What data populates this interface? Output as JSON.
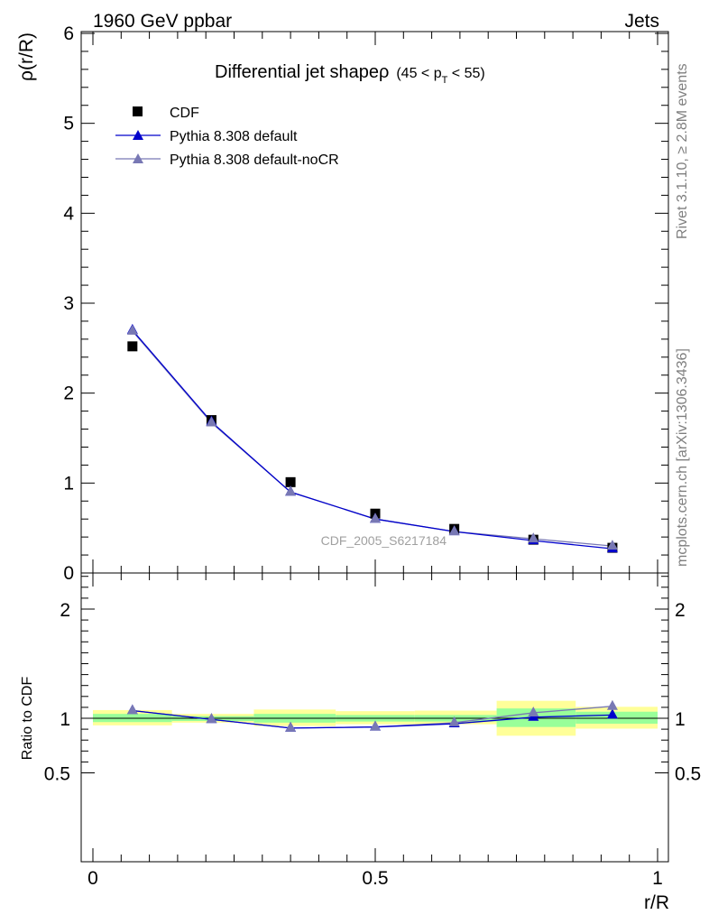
{
  "header": {
    "left": "1960 GeV ppbar",
    "right": "Jets"
  },
  "side_labels": {
    "rivet": "Rivet 3.1.10, ≥ 2.8M events",
    "mcplots": "mcplots.cern.ch [arXiv:1306.3436]"
  },
  "chart_data": [
    {
      "type": "line",
      "title_main": "Differential jet shapeρ",
      "title_range_pre": "(45 < p",
      "title_range_sub": "T",
      "title_range_post": " < 55)",
      "ylabel": "ρ(r/R)",
      "xlabel": "r/R",
      "ylim": [
        0,
        6
      ],
      "xlim": [
        -0.02,
        1.02
      ],
      "yticks": [
        0,
        1,
        2,
        3,
        4,
        5,
        6
      ],
      "ytick_labels": [
        "0",
        "1",
        "2",
        "3",
        "4",
        "5",
        "6"
      ],
      "watermark": "CDF_2005_S6217184",
      "legend_position": "top-left",
      "series": [
        {
          "name": "CDF",
          "marker": "square",
          "color": "#000000",
          "x": [
            0.07,
            0.21,
            0.35,
            0.5,
            0.64,
            0.78,
            0.92
          ],
          "y": [
            2.52,
            1.7,
            1.01,
            0.66,
            0.49,
            0.37,
            0.28
          ]
        },
        {
          "name": "Pythia 8.308 default",
          "marker": "triangle",
          "color": "#0000cc",
          "x": [
            0.07,
            0.21,
            0.35,
            0.5,
            0.64,
            0.78,
            0.92
          ],
          "y": [
            2.7,
            1.68,
            0.9,
            0.6,
            0.46,
            0.36,
            0.27
          ]
        },
        {
          "name": "Pythia 8.308 default-noCR",
          "marker": "triangle",
          "color": "#7878b4",
          "x": [
            0.07,
            0.21,
            0.35,
            0.5,
            0.64,
            0.78,
            0.92
          ],
          "y": [
            2.69,
            1.67,
            0.9,
            0.6,
            0.46,
            0.38,
            0.3
          ]
        }
      ]
    },
    {
      "type": "line",
      "ylabel": "Ratio to CDF",
      "xlabel": "r/R",
      "ylim": [
        0.37,
        2.33
      ],
      "xlim": [
        -0.02,
        1.02
      ],
      "yticks": [
        0.5,
        1,
        2
      ],
      "ytick_labels": [
        "0.5",
        "1",
        "2"
      ],
      "xticks": [
        0,
        0.5,
        1
      ],
      "xtick_labels": [
        "0",
        "0.5",
        "1"
      ],
      "uncertainty_bands": {
        "stat_color": "#99ff99",
        "total_color": "#ffff99",
        "bins": [
          {
            "x0": 0.0,
            "x1": 0.14,
            "green": [
              0.965,
              1.04
            ],
            "yellow": [
              0.935,
              1.075
            ]
          },
          {
            "x0": 0.14,
            "x1": 0.285,
            "green": [
              0.975,
              1.02
            ],
            "yellow": [
              0.96,
              1.04
            ]
          },
          {
            "x0": 0.285,
            "x1": 0.43,
            "green": [
              0.96,
              1.04
            ],
            "yellow": [
              0.93,
              1.08
            ]
          },
          {
            "x0": 0.43,
            "x1": 0.57,
            "green": [
              0.97,
              1.03
            ],
            "yellow": [
              0.945,
              1.065
            ]
          },
          {
            "x0": 0.57,
            "x1": 0.715,
            "green": [
              0.97,
              1.03
            ],
            "yellow": [
              0.945,
              1.07
            ]
          },
          {
            "x0": 0.715,
            "x1": 0.855,
            "green": [
              0.92,
              1.09
            ],
            "yellow": [
              0.84,
              1.16
            ]
          },
          {
            "x0": 0.855,
            "x1": 1.0,
            "green": [
              0.95,
              1.06
            ],
            "yellow": [
              0.905,
              1.105
            ]
          }
        ]
      },
      "series": [
        {
          "name": "Pythia 8.308 default",
          "color": "#0000cc",
          "x": [
            0.07,
            0.21,
            0.35,
            0.5,
            0.64,
            0.78,
            0.92
          ],
          "y": [
            1.07,
            0.99,
            0.91,
            0.92,
            0.95,
            1.01,
            1.03
          ]
        },
        {
          "name": "Pythia 8.308 default-noCR",
          "color": "#7878b4",
          "x": [
            0.07,
            0.21,
            0.35,
            0.5,
            0.64,
            0.78,
            0.92
          ],
          "y": [
            1.07,
            0.99,
            0.91,
            0.92,
            0.96,
            1.05,
            1.11
          ]
        }
      ]
    }
  ]
}
